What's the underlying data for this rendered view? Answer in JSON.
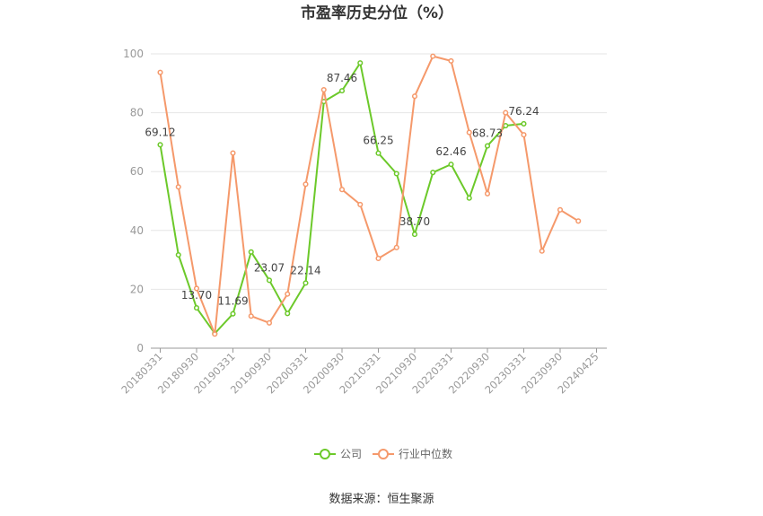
{
  "chart_data": {
    "type": "line",
    "title": "市盈率历史分位（%）",
    "source": "数据来源：恒生聚源",
    "ylim": [
      0,
      100
    ],
    "yticks": [
      0,
      20,
      40,
      60,
      80,
      100
    ],
    "x_tick_labels": [
      "20180331",
      "20180930",
      "20190331",
      "20190930",
      "20200331",
      "20200930",
      "20210331",
      "20210930",
      "20220331",
      "20220930",
      "20230331",
      "20230930",
      "20240425"
    ],
    "grid": true,
    "legend_position": "bottom",
    "series": [
      {
        "name": "公司",
        "color": "#6cc92a",
        "values": [
          69.12,
          31.7,
          13.7,
          5.0,
          11.69,
          32.7,
          23.07,
          11.8,
          22.14,
          83.8,
          87.46,
          96.9,
          66.25,
          59.3,
          38.7,
          59.7,
          62.46,
          51.0,
          68.73,
          75.6,
          76.24
        ]
      },
      {
        "name": "行业中位数",
        "color": "#f5996b",
        "values": [
          93.7,
          54.8,
          20.3,
          4.8,
          66.3,
          10.9,
          8.6,
          18.4,
          55.7,
          87.8,
          53.9,
          48.8,
          30.5,
          34.2,
          85.6,
          99.2,
          97.6,
          73.3,
          52.5,
          80.0,
          72.5,
          33.0,
          47.0,
          43.2
        ]
      }
    ],
    "data_labels": [
      {
        "series": 0,
        "index": 0,
        "text": "69.12"
      },
      {
        "series": 0,
        "index": 2,
        "text": "13.70"
      },
      {
        "series": 0,
        "index": 4,
        "text": "11.69"
      },
      {
        "series": 0,
        "index": 6,
        "text": "23.07"
      },
      {
        "series": 0,
        "index": 8,
        "text": "22.14"
      },
      {
        "series": 0,
        "index": 10,
        "text": "87.46"
      },
      {
        "series": 0,
        "index": 12,
        "text": "66.25"
      },
      {
        "series": 0,
        "index": 14,
        "text": "38.70"
      },
      {
        "series": 0,
        "index": 16,
        "text": "62.46"
      },
      {
        "series": 0,
        "index": 18,
        "text": "68.73"
      },
      {
        "series": 0,
        "index": 20,
        "text": "76.24"
      }
    ]
  }
}
